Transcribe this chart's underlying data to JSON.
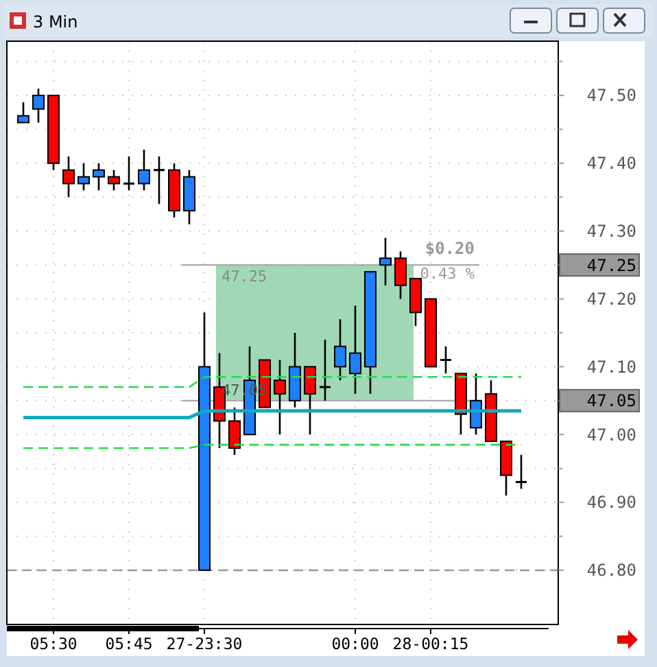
{
  "chart_data": {
    "type": "candlestick",
    "title": "3 Min",
    "categories": [
      null,
      null,
      "05:30",
      null,
      null,
      null,
      null,
      "05:45",
      null,
      null,
      null,
      null,
      "27-23:30",
      null,
      null,
      null,
      null,
      null,
      null,
      null,
      null,
      null,
      "00:00",
      null,
      null,
      null,
      null,
      "28-00:15",
      null,
      null,
      null,
      null,
      null,
      null
    ],
    "ohlc": [
      [
        47.46,
        47.49,
        47.46,
        47.47
      ],
      [
        47.48,
        47.51,
        47.46,
        47.5
      ],
      [
        47.5,
        47.5,
        47.39,
        47.4
      ],
      [
        47.39,
        47.41,
        47.35,
        47.37
      ],
      [
        47.37,
        47.4,
        47.36,
        47.38
      ],
      [
        47.38,
        47.4,
        47.36,
        47.39
      ],
      [
        47.38,
        47.39,
        47.36,
        47.37
      ],
      [
        47.37,
        47.41,
        47.36,
        47.37
      ],
      [
        47.37,
        47.42,
        47.36,
        47.39
      ],
      [
        47.39,
        47.41,
        47.34,
        47.39
      ],
      [
        47.39,
        47.4,
        47.32,
        47.33
      ],
      [
        47.33,
        47.39,
        47.31,
        47.38
      ],
      [
        46.8,
        47.18,
        46.8,
        47.1
      ],
      [
        47.07,
        47.12,
        46.98,
        47.02
      ],
      [
        47.02,
        47.04,
        46.97,
        46.98
      ],
      [
        47.0,
        47.13,
        47.0,
        47.08
      ],
      [
        47.11,
        47.11,
        47.04,
        47.04
      ],
      [
        47.08,
        47.11,
        47.0,
        47.06
      ],
      [
        47.05,
        47.15,
        47.04,
        47.1
      ],
      [
        47.1,
        47.1,
        47.0,
        47.06
      ],
      [
        47.07,
        47.14,
        47.05,
        47.07
      ],
      [
        47.1,
        47.17,
        47.08,
        47.13
      ],
      [
        47.09,
        47.19,
        47.06,
        47.12
      ],
      [
        47.1,
        47.24,
        47.06,
        47.24
      ],
      [
        47.25,
        47.29,
        47.22,
        47.26
      ],
      [
        47.26,
        47.27,
        47.2,
        47.22
      ],
      [
        47.23,
        47.23,
        47.16,
        47.18
      ],
      [
        47.2,
        47.2,
        47.1,
        47.1
      ],
      [
        47.11,
        47.13,
        47.09,
        47.11
      ],
      [
        47.09,
        47.09,
        47.0,
        47.03
      ],
      [
        47.01,
        47.09,
        47.0,
        47.05
      ],
      [
        47.06,
        47.08,
        46.99,
        46.99
      ],
      [
        46.99,
        46.99,
        46.91,
        46.94
      ],
      [
        46.93,
        46.97,
        46.92,
        46.93
      ]
    ],
    "colors": [
      "#1e7fff",
      "#1e7fff",
      "#ff0000",
      "#ff0000",
      "#1e7fff",
      "#1e7fff",
      "#ff0000",
      "#000000",
      "#1e7fff",
      "#000000",
      "#ff0000",
      "#1e7fff",
      "#1e7fff",
      "#ff0000",
      "#ff0000",
      "#1e7fff",
      "#ff0000",
      "#ff0000",
      "#1e7fff",
      "#ff0000",
      "#000000",
      "#1e7fff",
      "#1e7fff",
      "#1e7fff",
      "#1e7fff",
      "#ff0000",
      "#ff0000",
      "#ff0000",
      "#000000",
      "#ff0000",
      "#1e7fff",
      "#ff0000",
      "#ff0000",
      "#000000"
    ],
    "series": [
      {
        "type": "line",
        "color": "#22dd44",
        "line_style": "dashed",
        "values": [
          47.07,
          47.07,
          47.07,
          47.07,
          47.07,
          47.07,
          47.07,
          47.07,
          47.07,
          47.07,
          47.07,
          47.07,
          47.085,
          47.085,
          47.085,
          47.085,
          47.085,
          47.085,
          47.085,
          47.085,
          47.085,
          47.085,
          47.085,
          47.085,
          47.085,
          47.085,
          47.085,
          47.085,
          47.085,
          47.085,
          47.085,
          47.085,
          47.085,
          47.085
        ]
      },
      {
        "type": "line",
        "color": "#11aabb",
        "line_style": "solid",
        "values": [
          47.025,
          47.025,
          47.025,
          47.025,
          47.025,
          47.025,
          47.025,
          47.025,
          47.025,
          47.025,
          47.025,
          47.025,
          47.035,
          47.035,
          47.035,
          47.035,
          47.035,
          47.035,
          47.035,
          47.035,
          47.035,
          47.035,
          47.035,
          47.035,
          47.035,
          47.035,
          47.035,
          47.035,
          47.035,
          47.035,
          47.035,
          47.035,
          47.035,
          47.035
        ]
      },
      {
        "type": "line",
        "color": "#22dd44",
        "line_style": "dashed",
        "values": [
          46.98,
          46.98,
          46.98,
          46.98,
          46.98,
          46.98,
          46.98,
          46.98,
          46.98,
          46.98,
          46.98,
          46.98,
          46.985,
          46.985,
          46.985,
          46.985,
          46.985,
          46.985,
          46.985,
          46.985,
          46.985,
          46.985,
          46.985,
          46.985,
          46.985,
          46.985,
          46.985,
          46.985,
          46.985,
          46.985,
          46.985,
          46.985,
          46.985,
          46.985
        ]
      }
    ],
    "ylim": [
      46.72,
      47.58
    ],
    "yticks": [
      {
        "value": 46.8,
        "label": "46.80"
      },
      {
        "value": 46.85,
        "label": null
      },
      {
        "value": 46.9,
        "label": "46.90"
      },
      {
        "value": 46.95,
        "label": null
      },
      {
        "value": 47.0,
        "label": "47.00"
      },
      {
        "value": 47.05,
        "label": "47.05"
      },
      {
        "value": 47.1,
        "label": "47.10"
      },
      {
        "value": 47.15,
        "label": null
      },
      {
        "value": 47.2,
        "label": "47.20"
      },
      {
        "value": 47.25,
        "label": "47.25"
      },
      {
        "value": 47.3,
        "label": "47.30"
      },
      {
        "value": 47.35,
        "label": null
      },
      {
        "value": 47.4,
        "label": "47.40"
      },
      {
        "value": 47.45,
        "label": null
      },
      {
        "value": 47.5,
        "label": "47.50"
      },
      {
        "value": 47.55,
        "label": null
      }
    ],
    "grid": true,
    "ref_lines": [
      {
        "axis": "y",
        "value": 46.8,
        "color": "#999999",
        "line_style": "dashed"
      },
      {
        "axis": "y",
        "value": 47.25,
        "color": "#aaaaaa",
        "line_style": "solid"
      },
      {
        "axis": "y",
        "value": 47.05,
        "color": "#aaaaaa",
        "line_style": "solid"
      }
    ],
    "bands": [
      {
        "axis": "y",
        "from": 47.05,
        "to": 47.25,
        "label": null,
        "color": "#8fd1a8"
      }
    ],
    "annotations": [
      "$0.20",
      "0.43 %",
      "47.25",
      "47.05"
    ]
  }
}
